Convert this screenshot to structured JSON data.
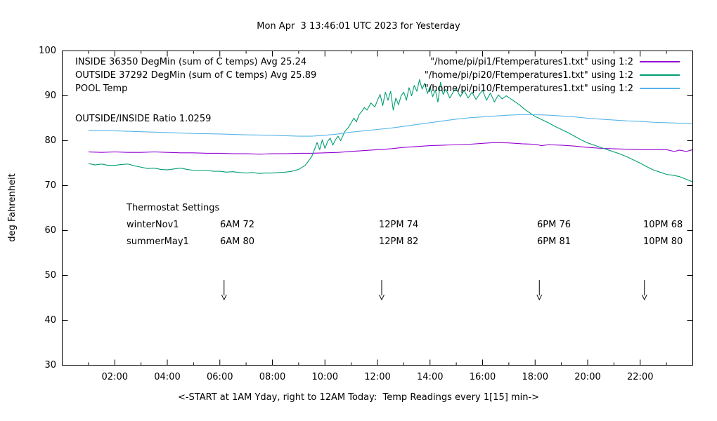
{
  "title": "Mon Apr  3 13:46:01 UTC 2023 for Yesterday",
  "axes": {
    "ylabel": "deg Fahrenheit",
    "xlabel": "<-START at 1AM Yday, right to 12AM Today:  Temp Readings every 1[15] min->"
  },
  "legend": {
    "rows": [
      {
        "label": "INSIDE 36350 DegMin (sum of C temps) Avg 25.24",
        "file": "\"/home/pi/pi1/Ftemperatures1.txt\" using 1:2"
      },
      {
        "label": "OUTSIDE 37292 DegMin (sum of C temps) Avg 25.89",
        "file": "\"/home/pi/pi20/Ftemperatures1.txt\" using 1:2"
      },
      {
        "label": "POOL Temp",
        "file": "\"/home/pi/pi10/Ftemperatures1.txt\" using 1:2"
      }
    ],
    "ratio": "OUTSIDE/INSIDE Ratio 1.0259"
  },
  "thermostat": {
    "heading": "Thermostat Settings",
    "rows": [
      {
        "name": "winterNov1",
        "settings": [
          "6AM 72",
          "12PM 74",
          "6PM 76",
          "10PM 68"
        ]
      },
      {
        "name": "summerMay1",
        "settings": [
          "6AM 80",
          "12PM 82",
          "6PM 81",
          "10PM 80"
        ]
      }
    ]
  },
  "chart_data": {
    "type": "line",
    "title": "Mon Apr  3 13:46:01 UTC 2023 for Yesterday",
    "xlabel": "<-START at 1AM Yday, right to 12AM Today:  Temp Readings every 1[15] min->",
    "ylabel": "deg Fahrenheit",
    "xlim": [
      0,
      24
    ],
    "ylim": [
      30,
      100
    ],
    "grid": false,
    "legend_position": "top-right-inside",
    "x_unit": "hour of day (1AM yesterday to 12AM today)",
    "xticks": [
      {
        "hour": 2,
        "label": "02:00"
      },
      {
        "hour": 4,
        "label": "04:00"
      },
      {
        "hour": 6,
        "label": "06:00"
      },
      {
        "hour": 8,
        "label": "08:00"
      },
      {
        "hour": 10,
        "label": "10:00"
      },
      {
        "hour": 12,
        "label": "12:00"
      },
      {
        "hour": 14,
        "label": "14:00"
      },
      {
        "hour": 16,
        "label": "16:00"
      },
      {
        "hour": 18,
        "label": "18:00"
      },
      {
        "hour": 20,
        "label": "20:00"
      },
      {
        "hour": 22,
        "label": "22:00"
      }
    ],
    "yticks": [
      {
        "value": 30,
        "label": "30"
      },
      {
        "value": 40,
        "label": "40"
      },
      {
        "value": 50,
        "label": "50"
      },
      {
        "value": 60,
        "label": "60"
      },
      {
        "value": 70,
        "label": "70"
      },
      {
        "value": 80,
        "label": "80"
      },
      {
        "value": 90,
        "label": "90"
      },
      {
        "value": 100,
        "label": "100"
      }
    ],
    "annotations": {
      "arrow_hours": [
        6,
        12,
        18,
        22
      ],
      "arrow_tail_f": 49,
      "arrow_head_f": 44.6
    },
    "series": [
      {
        "name": "INSIDE",
        "color": "#9400d3",
        "points": [
          [
            1,
            77.5
          ],
          [
            1.5,
            77.4
          ],
          [
            2,
            77.5
          ],
          [
            2.5,
            77.4
          ],
          [
            3,
            77.4
          ],
          [
            3.5,
            77.5
          ],
          [
            4,
            77.4
          ],
          [
            4.5,
            77.3
          ],
          [
            5,
            77.3
          ],
          [
            5.5,
            77.2
          ],
          [
            6,
            77.2
          ],
          [
            6.5,
            77.1
          ],
          [
            7,
            77.1
          ],
          [
            7.5,
            77.0
          ],
          [
            8,
            77.1
          ],
          [
            8.5,
            77.1
          ],
          [
            9,
            77.2
          ],
          [
            9.5,
            77.2
          ],
          [
            10,
            77.3
          ],
          [
            10.5,
            77.4
          ],
          [
            11,
            77.6
          ],
          [
            11.5,
            77.8
          ],
          [
            12,
            78.0
          ],
          [
            12.5,
            78.2
          ],
          [
            13,
            78.5
          ],
          [
            13.5,
            78.7
          ],
          [
            14,
            78.9
          ],
          [
            14.5,
            79.0
          ],
          [
            15,
            79.1
          ],
          [
            15.5,
            79.2
          ],
          [
            16,
            79.4
          ],
          [
            16.5,
            79.6
          ],
          [
            17,
            79.5
          ],
          [
            17.5,
            79.3
          ],
          [
            18,
            79.2
          ],
          [
            18.25,
            78.9
          ],
          [
            18.5,
            79.1
          ],
          [
            19,
            79.0
          ],
          [
            19.5,
            78.8
          ],
          [
            20,
            78.5
          ],
          [
            20.5,
            78.3
          ],
          [
            21,
            78.2
          ],
          [
            21.5,
            78.1
          ],
          [
            22,
            78.0
          ],
          [
            22.5,
            78.0
          ],
          [
            23,
            78.0
          ],
          [
            23.3,
            77.6
          ],
          [
            23.5,
            77.9
          ],
          [
            23.75,
            77.6
          ],
          [
            24,
            78.0
          ]
        ]
      },
      {
        "name": "OUTSIDE",
        "color": "#009e73",
        "points": [
          [
            1,
            74.9
          ],
          [
            1.25,
            74.6
          ],
          [
            1.5,
            74.8
          ],
          [
            1.75,
            74.5
          ],
          [
            2,
            74.5
          ],
          [
            2.25,
            74.7
          ],
          [
            2.5,
            74.8
          ],
          [
            2.75,
            74.4
          ],
          [
            3,
            74.1
          ],
          [
            3.25,
            73.8
          ],
          [
            3.5,
            73.9
          ],
          [
            3.75,
            73.6
          ],
          [
            4,
            73.5
          ],
          [
            4.25,
            73.7
          ],
          [
            4.5,
            73.9
          ],
          [
            4.75,
            73.6
          ],
          [
            5,
            73.4
          ],
          [
            5.25,
            73.3
          ],
          [
            5.5,
            73.4
          ],
          [
            5.75,
            73.2
          ],
          [
            6,
            73.2
          ],
          [
            6.25,
            73.0
          ],
          [
            6.5,
            73.1
          ],
          [
            6.75,
            72.9
          ],
          [
            7,
            72.8
          ],
          [
            7.25,
            72.9
          ],
          [
            7.5,
            72.7
          ],
          [
            7.75,
            72.8
          ],
          [
            8,
            72.8
          ],
          [
            8.25,
            72.9
          ],
          [
            8.5,
            73.0
          ],
          [
            8.75,
            73.2
          ],
          [
            9,
            73.6
          ],
          [
            9.25,
            74.5
          ],
          [
            9.5,
            76.5
          ],
          [
            9.6,
            78.0
          ],
          [
            9.7,
            79.6
          ],
          [
            9.8,
            78.0
          ],
          [
            9.9,
            80.2
          ],
          [
            10,
            78.3
          ],
          [
            10.1,
            79.8
          ],
          [
            10.2,
            80.6
          ],
          [
            10.3,
            79.0
          ],
          [
            10.4,
            80.2
          ],
          [
            10.5,
            81.0
          ],
          [
            10.6,
            80.0
          ],
          [
            10.75,
            82.0
          ],
          [
            10.9,
            83.0
          ],
          [
            11,
            84.0
          ],
          [
            11.1,
            85.0
          ],
          [
            11.2,
            84.2
          ],
          [
            11.3,
            85.8
          ],
          [
            11.4,
            86.5
          ],
          [
            11.5,
            87.4
          ],
          [
            11.6,
            86.8
          ],
          [
            11.75,
            88.4
          ],
          [
            11.9,
            87.5
          ],
          [
            12,
            89.0
          ],
          [
            12.1,
            90.3
          ],
          [
            12.2,
            87.8
          ],
          [
            12.3,
            90.8
          ],
          [
            12.4,
            89.0
          ],
          [
            12.5,
            91.0
          ],
          [
            12.6,
            86.8
          ],
          [
            12.7,
            89.5
          ],
          [
            12.8,
            88.0
          ],
          [
            12.9,
            90.0
          ],
          [
            13,
            90.8
          ],
          [
            13.1,
            89.0
          ],
          [
            13.2,
            91.8
          ],
          [
            13.3,
            90.0
          ],
          [
            13.4,
            92.3
          ],
          [
            13.5,
            91.0
          ],
          [
            13.6,
            93.6
          ],
          [
            13.7,
            91.5
          ],
          [
            13.8,
            92.8
          ],
          [
            13.9,
            90.5
          ],
          [
            14,
            92.0
          ],
          [
            14.1,
            89.8
          ],
          [
            14.2,
            91.3
          ],
          [
            14.3,
            88.6
          ],
          [
            14.4,
            93.0
          ],
          [
            14.5,
            90.3
          ],
          [
            14.6,
            91.5
          ],
          [
            14.75,
            89.5
          ],
          [
            14.9,
            91.0
          ],
          [
            15,
            91.6
          ],
          [
            15.15,
            89.8
          ],
          [
            15.3,
            91.2
          ],
          [
            15.45,
            89.5
          ],
          [
            15.6,
            90.8
          ],
          [
            15.75,
            89.2
          ],
          [
            15.9,
            90.5
          ],
          [
            16,
            91.2
          ],
          [
            16.15,
            89.0
          ],
          [
            16.3,
            90.6
          ],
          [
            16.45,
            88.6
          ],
          [
            16.6,
            90.2
          ],
          [
            16.75,
            89.3
          ],
          [
            16.9,
            90.0
          ],
          [
            17,
            89.6
          ],
          [
            17.2,
            88.8
          ],
          [
            17.4,
            88.0
          ],
          [
            17.6,
            87.0
          ],
          [
            17.8,
            86.2
          ],
          [
            18,
            85.4
          ],
          [
            18.25,
            84.7
          ],
          [
            18.5,
            84.0
          ],
          [
            18.75,
            83.2
          ],
          [
            19,
            82.5
          ],
          [
            19.25,
            81.8
          ],
          [
            19.5,
            81.0
          ],
          [
            19.75,
            80.2
          ],
          [
            20,
            79.5
          ],
          [
            20.25,
            79.0
          ],
          [
            20.5,
            78.5
          ],
          [
            20.75,
            78.0
          ],
          [
            21,
            77.5
          ],
          [
            21.25,
            77.0
          ],
          [
            21.5,
            76.4
          ],
          [
            21.75,
            75.7
          ],
          [
            22,
            75.0
          ],
          [
            22.25,
            74.2
          ],
          [
            22.5,
            73.5
          ],
          [
            22.75,
            73.0
          ],
          [
            23,
            72.5
          ],
          [
            23.25,
            72.3
          ],
          [
            23.5,
            72.0
          ],
          [
            23.75,
            71.4
          ],
          [
            24,
            70.8
          ]
        ]
      },
      {
        "name": "POOL",
        "color": "#56b4e9",
        "points": [
          [
            1,
            82.3
          ],
          [
            2,
            82.2
          ],
          [
            3,
            82.0
          ],
          [
            4,
            81.8
          ],
          [
            5,
            81.6
          ],
          [
            6,
            81.5
          ],
          [
            7,
            81.3
          ],
          [
            8,
            81.2
          ],
          [
            9,
            81.0
          ],
          [
            9.5,
            81.0
          ],
          [
            10,
            81.2
          ],
          [
            10.5,
            81.5
          ],
          [
            11,
            81.9
          ],
          [
            11.5,
            82.2
          ],
          [
            12,
            82.5
          ],
          [
            12.5,
            82.8
          ],
          [
            13,
            83.2
          ],
          [
            13.5,
            83.6
          ],
          [
            14,
            84.0
          ],
          [
            14.5,
            84.4
          ],
          [
            15,
            84.8
          ],
          [
            15.5,
            85.1
          ],
          [
            16,
            85.3
          ],
          [
            16.5,
            85.5
          ],
          [
            17,
            85.7
          ],
          [
            17.5,
            85.8
          ],
          [
            18,
            85.8
          ],
          [
            18.5,
            85.7
          ],
          [
            19,
            85.5
          ],
          [
            19.5,
            85.3
          ],
          [
            20,
            85.0
          ],
          [
            20.5,
            84.8
          ],
          [
            21,
            84.6
          ],
          [
            21.5,
            84.4
          ],
          [
            22,
            84.3
          ],
          [
            22.5,
            84.1
          ],
          [
            23,
            84.0
          ],
          [
            23.5,
            83.9
          ],
          [
            24,
            83.8
          ]
        ]
      }
    ]
  }
}
